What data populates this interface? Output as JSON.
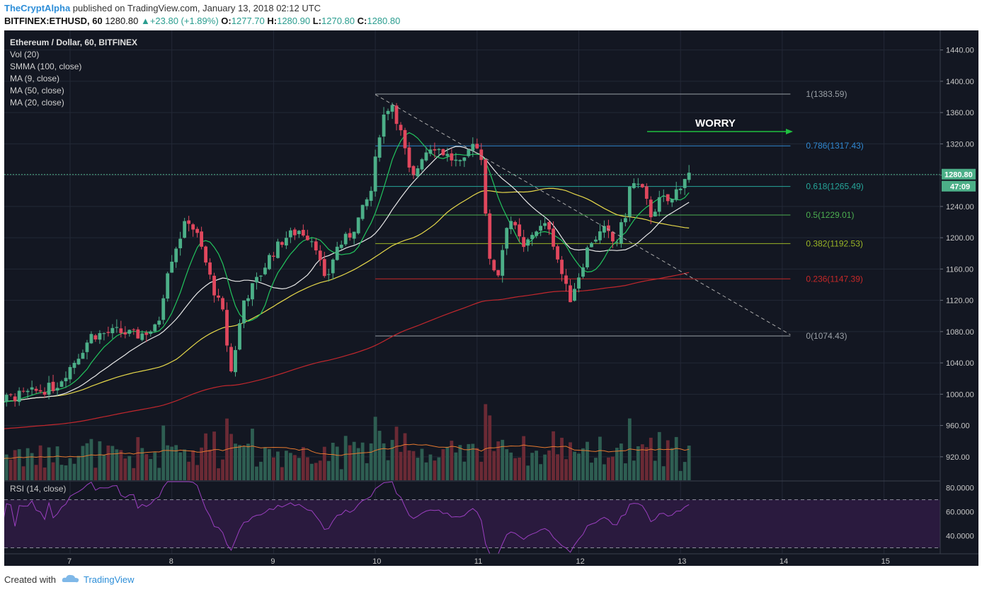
{
  "header": {
    "author": "TheCryptAlpha",
    "published": "published on TradingView.com, January 13, 2018 02:12 UTC",
    "symbol": "BITFINEX:ETHUSD, 60",
    "last": "1280.80",
    "change": "+23.80 (+1.89%)",
    "o_label": "O:",
    "o": "1277.70",
    "h_label": "H:",
    "h": "1280.90",
    "l_label": "L:",
    "l": "1270.80",
    "c_label": "C:",
    "c": "1280.80"
  },
  "legend": {
    "title": "Ethereum / Dollar, 60, BITFINEX",
    "items": [
      "Vol (20)",
      "SMMA (100, close)",
      "MA (9, close)",
      "MA (50, close)",
      "MA (20, close)"
    ]
  },
  "annotation": "WORRY",
  "price_badge": "1280.80",
  "timer_badge": "47:09",
  "rsi_label": "RSI (14, close)",
  "footer": {
    "created": "Created with",
    "brand": "TradingView"
  },
  "colors": {
    "bg": "#131722",
    "up": "#4caf88",
    "down": "#e0475d",
    "ma9": "#22c55e",
    "ma20": "#e8e8e8",
    "ma50": "#e6d84a",
    "smma100": "#c1272d",
    "vol_ma": "#e6792f",
    "rsi": "#9b3fc0",
    "arrow": "#20c040"
  },
  "chart_data": {
    "type": "candlestick",
    "price_axis": {
      "ticks": [
        "1440.00",
        "1400.00",
        "1360.00",
        "1320.00",
        "1280.00",
        "1240.00",
        "1200.00",
        "1160.00",
        "1120.00",
        "1080.00",
        "1040.00",
        "1000.00",
        "960.00",
        "920.00"
      ],
      "range": [
        890,
        1465
      ]
    },
    "rsi_axis": {
      "ticks": [
        "80.0000",
        "60.0000",
        "40.0000"
      ],
      "range": [
        25,
        85
      ],
      "bands": [
        70,
        30
      ]
    },
    "x_axis": {
      "ticks": [
        "7",
        "8",
        "9",
        "10",
        "11",
        "12",
        "13",
        "14",
        "15"
      ]
    },
    "fibonacci": [
      {
        "label": "1(1383.59)",
        "level": "1",
        "value": 1383.59,
        "color": "#9aa0a6"
      },
      {
        "label": "0.786(1317.43)",
        "level": "0.786",
        "value": 1317.43,
        "color": "#2f87d0"
      },
      {
        "label": "0.618(1265.49)",
        "level": "0.618",
        "value": 1265.49,
        "color": "#26a69a"
      },
      {
        "label": "0.5(1229.01)",
        "level": "0.5",
        "value": 1229.01,
        "color": "#4caf50"
      },
      {
        "label": "0.382(1192.53)",
        "level": "0.382",
        "value": 1192.53,
        "color": "#9ab526"
      },
      {
        "label": "0.236(1147.39)",
        "level": "0.236",
        "value": 1147.39,
        "color": "#c62828"
      },
      {
        "label": "0(1074.43)",
        "level": "0",
        "value": 1074.43,
        "color": "#9aa0a6"
      }
    ],
    "last_price": 1280.8,
    "key_prices": {
      "start": 993,
      "day8_high": 1225,
      "day8_5_low": 1020,
      "day10_2_high": 1383,
      "day11_9_low": 1074,
      "last": 1280.8
    }
  }
}
